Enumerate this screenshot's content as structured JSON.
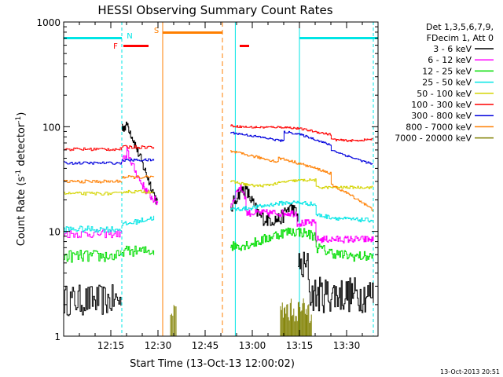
{
  "chart_data": {
    "type": "line",
    "title": "HESSI Observing Summary Count Rates",
    "xlabel": "Start Time (13-Oct-13 12:00:02)",
    "ylabel_main": "Count Rate (s",
    "ylabel_sup1": "-1",
    "ylabel_mid": " detector",
    "ylabel_sup2": "-1",
    "ylabel_end": ")",
    "y_scale": "log",
    "ylim": [
      1,
      1000
    ],
    "xlim_minutes": [
      0,
      100
    ],
    "x_ticks": [
      {
        "label": "12:15",
        "min": 15
      },
      {
        "label": "12:30",
        "min": 30
      },
      {
        "label": "12:45",
        "min": 45
      },
      {
        "label": "13:00",
        "min": 60
      },
      {
        "label": "13:15",
        "min": 75
      },
      {
        "label": "13:30",
        "min": 90
      }
    ],
    "y_ticks": [
      {
        "label": "1",
        "v": 1
      },
      {
        "label": "10",
        "v": 10
      },
      {
        "label": "100",
        "v": 100
      },
      {
        "label": "1000",
        "v": 1000
      }
    ],
    "legend_header": [
      "Det 1,3,5,6,7,9,",
      "FDecim 1, Att 0"
    ],
    "series": [
      {
        "name": "3 - 6 keV",
        "color": "#000000"
      },
      {
        "name": "6 - 12 keV",
        "color": "#ff00ff"
      },
      {
        "name": "12 - 25 keV",
        "color": "#00dd00"
      },
      {
        "name": "25 - 50 keV",
        "color": "#00e5e5"
      },
      {
        "name": "50 - 100 keV",
        "color": "#d4d400"
      },
      {
        "name": "100 - 300 keV",
        "color": "#ff0000"
      },
      {
        "name": "300 - 800 keV",
        "color": "#0000dd"
      },
      {
        "name": "800 - 7000 keV",
        "color": "#ff7f00"
      },
      {
        "name": "7000 - 20000 keV",
        "color": "#808000"
      }
    ],
    "flag_labels": [
      {
        "text": "N",
        "color": "#00e5e5"
      },
      {
        "text": "S",
        "color": "#ff7f00"
      },
      {
        "text": "F",
        "color": "#ff0000"
      }
    ],
    "footer_timestamp": "13-Oct-2013 20:51"
  }
}
